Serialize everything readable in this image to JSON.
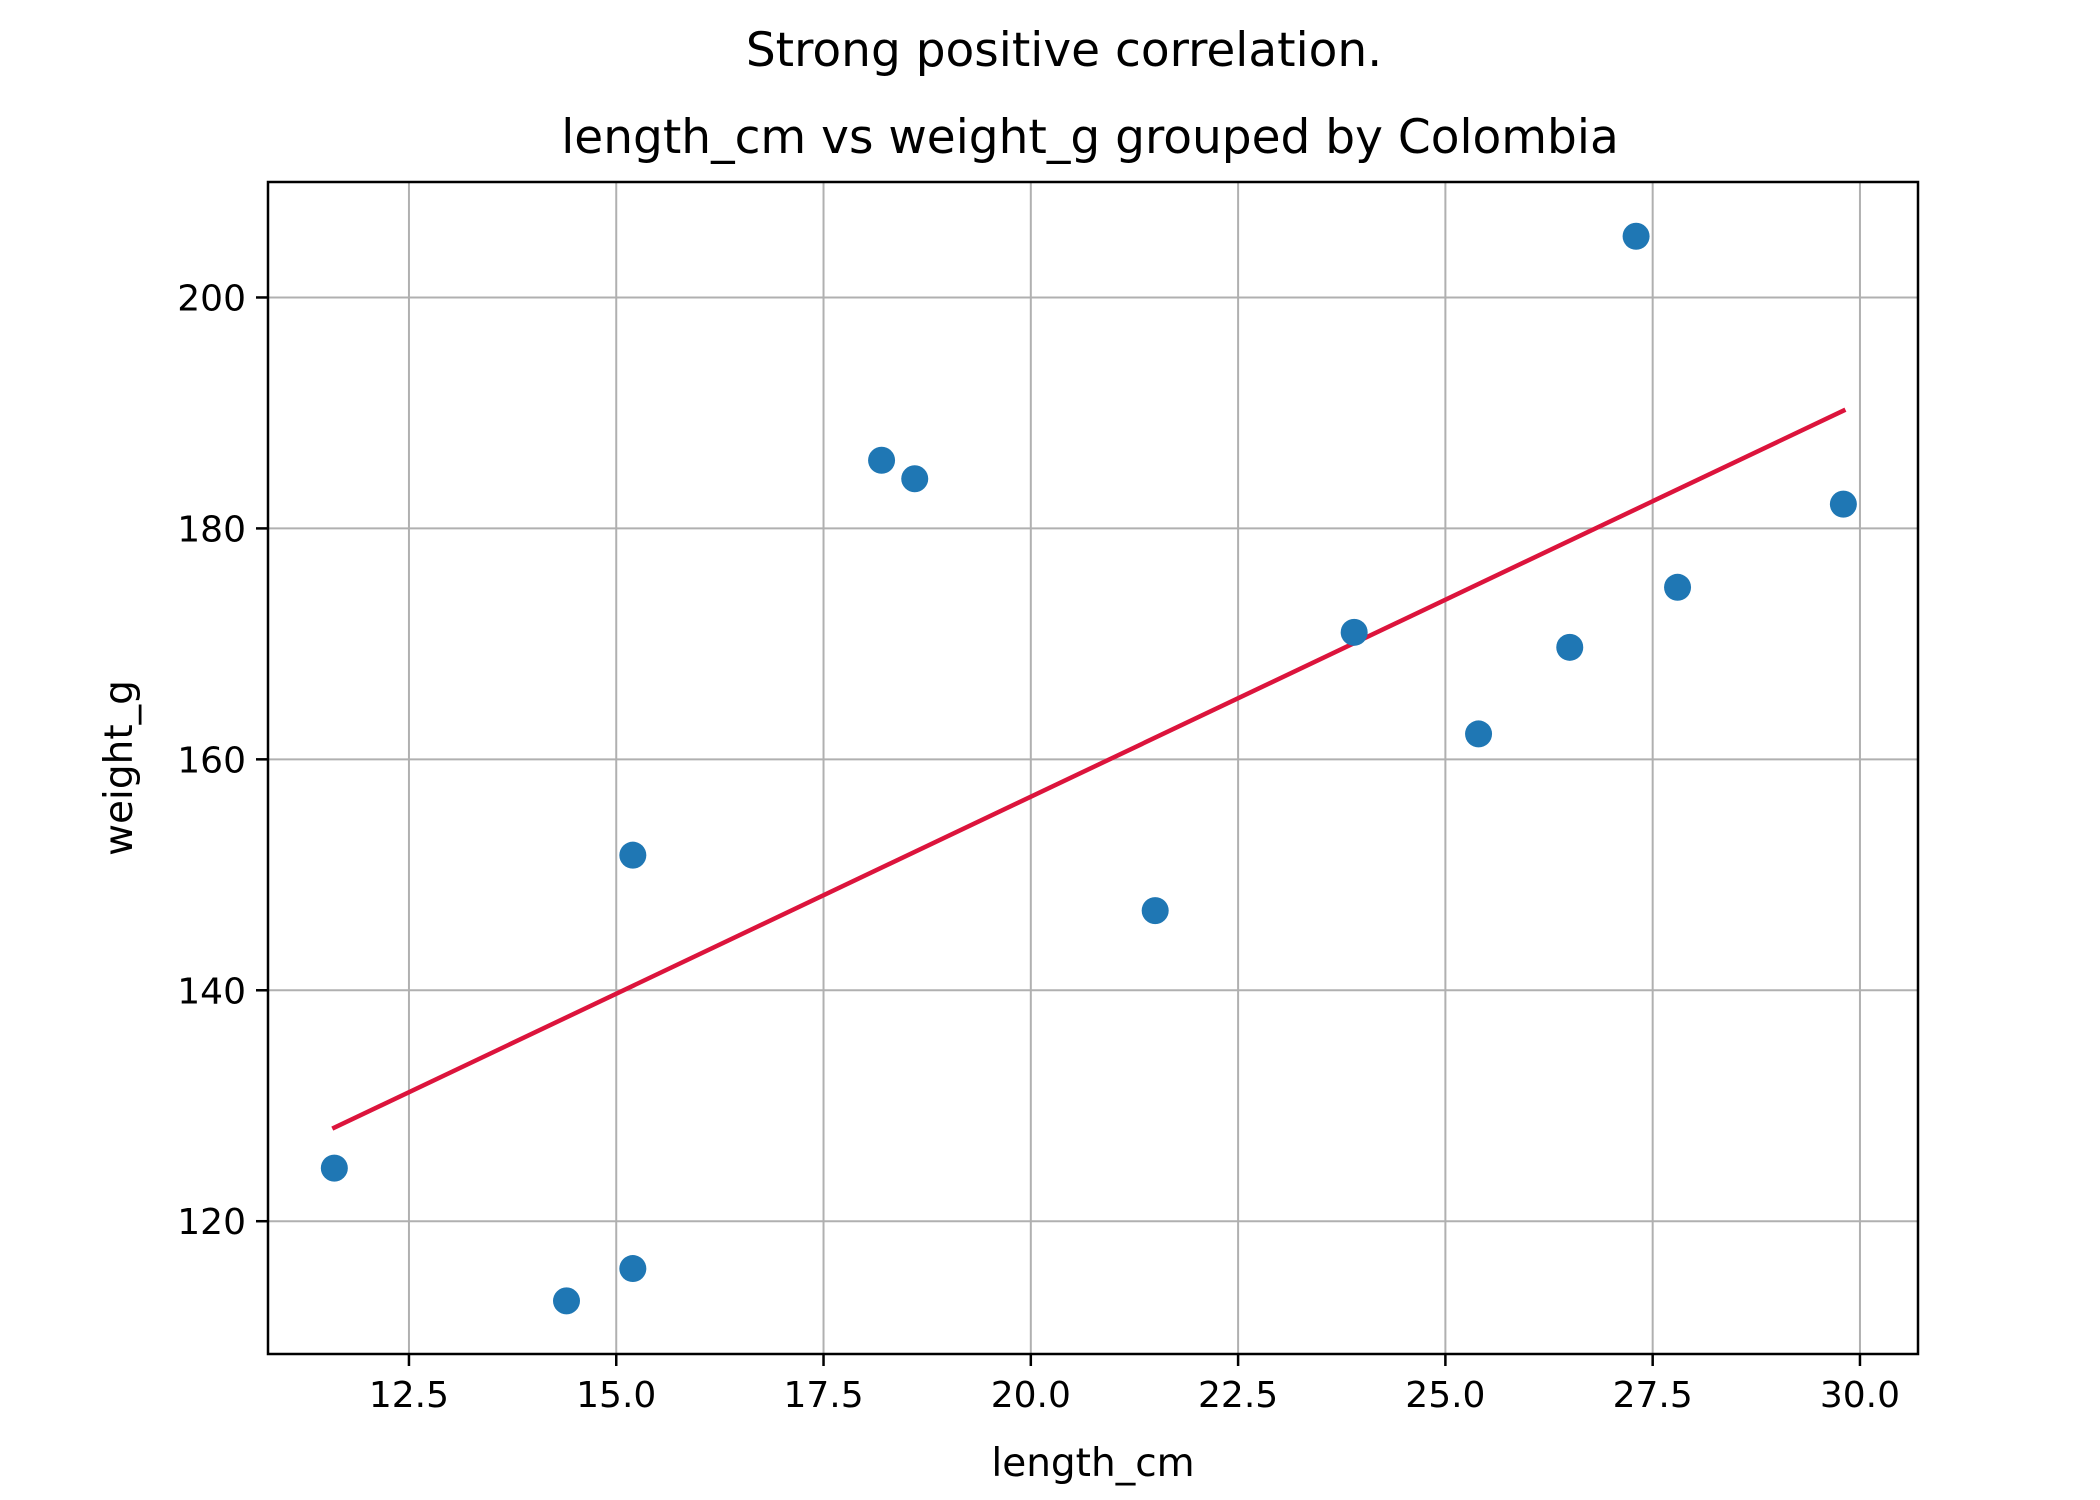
{
  "chart_data": {
    "type": "scatter",
    "suptitle": "Strong positive correlation.",
    "title": "length_cm vs weight_g grouped by Colombia",
    "xlabel": "length_cm",
    "ylabel": "weight_g",
    "xlim": [
      10.8,
      30.7
    ],
    "ylim": [
      108.5,
      210
    ],
    "grid": true,
    "x_ticks": [
      12.5,
      15.0,
      17.5,
      20.0,
      22.5,
      25.0,
      27.5,
      30.0
    ],
    "x_tick_labels": [
      "12.5",
      "15.0",
      "17.5",
      "20.0",
      "22.5",
      "25.0",
      "27.5",
      "30.0"
    ],
    "y_ticks": [
      120,
      140,
      160,
      180,
      200
    ],
    "y_tick_labels": [
      "120",
      "140",
      "160",
      "180",
      "200"
    ],
    "series": [
      {
        "type": "scatter",
        "color": "#1f77b4",
        "points": [
          {
            "x": 11.6,
            "y": 124.6
          },
          {
            "x": 14.4,
            "y": 113.1
          },
          {
            "x": 15.2,
            "y": 151.7
          },
          {
            "x": 15.2,
            "y": 115.9
          },
          {
            "x": 18.2,
            "y": 185.9
          },
          {
            "x": 18.6,
            "y": 184.3
          },
          {
            "x": 21.5,
            "y": 146.9
          },
          {
            "x": 23.9,
            "y": 171.0
          },
          {
            "x": 25.4,
            "y": 162.2
          },
          {
            "x": 26.5,
            "y": 169.7
          },
          {
            "x": 27.3,
            "y": 205.3
          },
          {
            "x": 27.8,
            "y": 174.9
          },
          {
            "x": 29.8,
            "y": 182.1
          }
        ]
      },
      {
        "type": "line",
        "color": "#dc143c",
        "points": [
          {
            "x": 11.6,
            "y": 128.1
          },
          {
            "x": 29.8,
            "y": 190.2
          }
        ]
      }
    ]
  }
}
